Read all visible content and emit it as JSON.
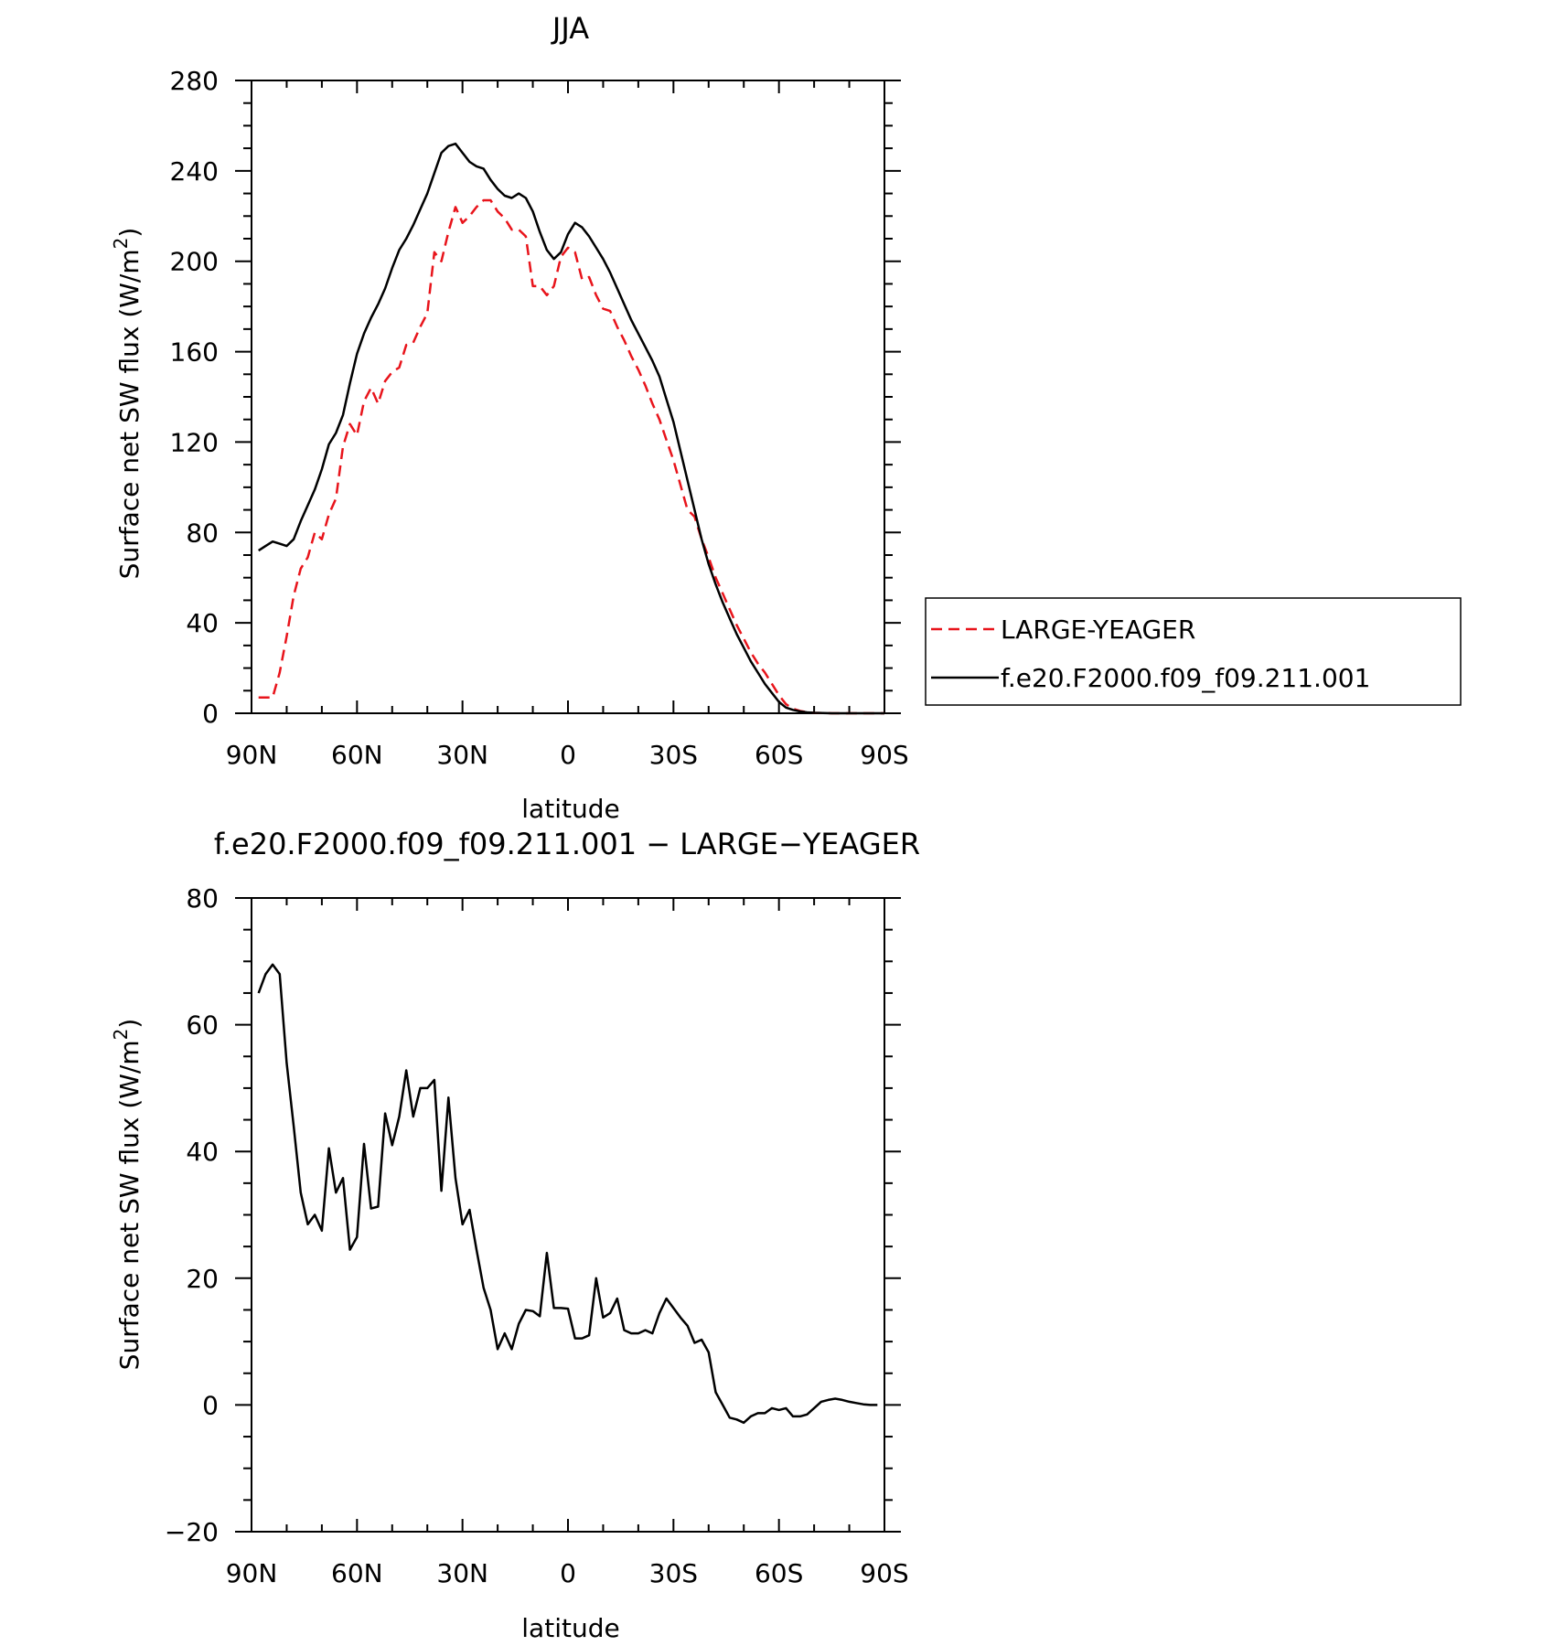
{
  "chart_data": [
    {
      "type": "line",
      "title": "JJA",
      "xlabel": "latitude",
      "ylabel": "Surface net SW flux (W/m²)",
      "ylabel_parts": {
        "main": "Surface net SW flux (W/m",
        "sup": "2",
        "end": ")"
      },
      "xlim": [
        90,
        -90
      ],
      "ylim": [
        0,
        280
      ],
      "x_ticks": [
        {
          "value": 90,
          "label": "90N"
        },
        {
          "value": 60,
          "label": "60N"
        },
        {
          "value": 30,
          "label": "30N"
        },
        {
          "value": 0,
          "label": "0"
        },
        {
          "value": -30,
          "label": "30S"
        },
        {
          "value": -60,
          "label": "60S"
        },
        {
          "value": -90,
          "label": "90S"
        }
      ],
      "y_ticks": [
        0,
        40,
        80,
        120,
        160,
        200,
        240,
        280
      ],
      "grid": false,
      "legend_position": "right",
      "series": [
        {
          "name": "LARGE-YEAGER",
          "color": "#e8141b",
          "dash": "dashed",
          "points": [
            [
              88,
              7
            ],
            [
              86,
              7
            ],
            [
              84,
              7
            ],
            [
              82,
              18
            ],
            [
              80,
              34
            ],
            [
              78,
              52
            ],
            [
              76,
              64
            ],
            [
              74,
              69
            ],
            [
              72,
              80
            ],
            [
              70,
              77
            ],
            [
              68,
              88
            ],
            [
              66,
              95
            ],
            [
              64,
              118
            ],
            [
              62,
              128
            ],
            [
              60,
              123
            ],
            [
              58,
              138
            ],
            [
              56,
              144
            ],
            [
              54,
              137
            ],
            [
              52,
              147
            ],
            [
              50,
              151
            ],
            [
              48,
              153
            ],
            [
              46,
              163
            ],
            [
              44,
              164
            ],
            [
              42,
              171
            ],
            [
              40,
              177
            ],
            [
              38,
              204
            ],
            [
              36,
              200
            ],
            [
              34,
              213
            ],
            [
              32,
              224
            ],
            [
              30,
              217
            ],
            [
              28,
              220
            ],
            [
              26,
              224
            ],
            [
              24,
              227
            ],
            [
              22,
              227
            ],
            [
              20,
              222
            ],
            [
              18,
              219
            ],
            [
              16,
              214
            ],
            [
              14,
              214
            ],
            [
              12,
              211
            ],
            [
              10,
              189
            ],
            [
              8,
              189
            ],
            [
              6,
              185
            ],
            [
              4,
              189
            ],
            [
              2,
              202
            ],
            [
              0,
              206
            ],
            [
              -2,
              204
            ],
            [
              -4,
              192
            ],
            [
              -6,
              193
            ],
            [
              -8,
              185
            ],
            [
              -10,
              179
            ],
            [
              -12,
              178
            ],
            [
              -14,
              171
            ],
            [
              -16,
              165
            ],
            [
              -18,
              158
            ],
            [
              -20,
              152
            ],
            [
              -22,
              145
            ],
            [
              -24,
              137
            ],
            [
              -26,
              130
            ],
            [
              -28,
              121
            ],
            [
              -30,
              112
            ],
            [
              -32,
              101
            ],
            [
              -34,
              90
            ],
            [
              -36,
              87
            ],
            [
              -38,
              77
            ],
            [
              -40,
              69
            ],
            [
              -42,
              60
            ],
            [
              -44,
              53
            ],
            [
              -46,
              46
            ],
            [
              -48,
              39
            ],
            [
              -50,
              33
            ],
            [
              -52,
              27
            ],
            [
              -54,
              22
            ],
            [
              -56,
              18
            ],
            [
              -58,
              13
            ],
            [
              -60,
              8
            ],
            [
              -62,
              4
            ],
            [
              -64,
              2
            ],
            [
              -66,
              1
            ],
            [
              -68,
              0.5
            ],
            [
              -70,
              0.2
            ],
            [
              -75,
              0
            ],
            [
              -80,
              0
            ],
            [
              -85,
              0
            ],
            [
              -90,
              0
            ]
          ]
        },
        {
          "name": "f.e20.F2000.f09_f09.211.001",
          "color": "#000000",
          "dash": "solid",
          "points": [
            [
              88,
              72
            ],
            [
              86,
              74
            ],
            [
              84,
              76
            ],
            [
              82,
              75
            ],
            [
              80,
              74
            ],
            [
              78,
              77
            ],
            [
              76,
              85
            ],
            [
              74,
              92
            ],
            [
              72,
              99
            ],
            [
              70,
              108
            ],
            [
              68,
              119
            ],
            [
              66,
              124
            ],
            [
              64,
              132
            ],
            [
              62,
              146
            ],
            [
              60,
              159
            ],
            [
              58,
              168
            ],
            [
              56,
              175
            ],
            [
              54,
              181
            ],
            [
              52,
              188
            ],
            [
              50,
              197
            ],
            [
              48,
              205
            ],
            [
              46,
              210
            ],
            [
              44,
              216
            ],
            [
              42,
              223
            ],
            [
              40,
              230
            ],
            [
              38,
              239
            ],
            [
              36,
              248
            ],
            [
              34,
              251
            ],
            [
              32,
              252
            ],
            [
              30,
              248
            ],
            [
              28,
              244
            ],
            [
              26,
              242
            ],
            [
              24,
              241
            ],
            [
              22,
              236
            ],
            [
              20,
              232
            ],
            [
              18,
              229
            ],
            [
              16,
              228
            ],
            [
              14,
              230
            ],
            [
              12,
              228
            ],
            [
              10,
              222
            ],
            [
              8,
              213
            ],
            [
              6,
              205
            ],
            [
              4,
              201
            ],
            [
              2,
              204
            ],
            [
              0,
              212
            ],
            [
              -2,
              217
            ],
            [
              -4,
              215
            ],
            [
              -6,
              211
            ],
            [
              -8,
              206
            ],
            [
              -10,
              201
            ],
            [
              -12,
              195
            ],
            [
              -14,
              188
            ],
            [
              -16,
              181
            ],
            [
              -18,
              174
            ],
            [
              -20,
              168
            ],
            [
              -22,
              162
            ],
            [
              -24,
              156
            ],
            [
              -26,
              149
            ],
            [
              -28,
              139
            ],
            [
              -30,
              129
            ],
            [
              -32,
              116
            ],
            [
              -34,
              103
            ],
            [
              -36,
              90
            ],
            [
              -38,
              77
            ],
            [
              -40,
              66
            ],
            [
              -42,
              57
            ],
            [
              -44,
              49
            ],
            [
              -46,
              42
            ],
            [
              -48,
              35
            ],
            [
              -50,
              29
            ],
            [
              -52,
              23
            ],
            [
              -54,
              18
            ],
            [
              -56,
              13
            ],
            [
              -58,
              9
            ],
            [
              -60,
              5
            ],
            [
              -62,
              2.5
            ],
            [
              -64,
              1.5
            ],
            [
              -66,
              0.8
            ],
            [
              -68,
              0.4
            ],
            [
              -70,
              0.2
            ],
            [
              -75,
              0
            ],
            [
              -80,
              0
            ],
            [
              -85,
              0
            ],
            [
              -90,
              0
            ]
          ]
        }
      ]
    },
    {
      "type": "line",
      "title": "f.e20.F2000.f09_f09.211.001 − LARGE−YEAGER",
      "xlabel": "latitude",
      "ylabel": "Surface net SW flux (W/m²)",
      "ylabel_parts": {
        "main": "Surface net SW flux (W/m",
        "sup": "2",
        "end": ")"
      },
      "xlim": [
        90,
        -90
      ],
      "ylim": [
        -20,
        80
      ],
      "x_ticks": [
        {
          "value": 90,
          "label": "90N"
        },
        {
          "value": 60,
          "label": "60N"
        },
        {
          "value": 30,
          "label": "30N"
        },
        {
          "value": 0,
          "label": "0"
        },
        {
          "value": -30,
          "label": "30S"
        },
        {
          "value": -60,
          "label": "60S"
        },
        {
          "value": -90,
          "label": "90S"
        }
      ],
      "y_ticks": [
        {
          "value": -20,
          "label": "−20"
        },
        {
          "value": 0,
          "label": "0"
        },
        {
          "value": 20,
          "label": "20"
        },
        {
          "value": 40,
          "label": "40"
        },
        {
          "value": 60,
          "label": "60"
        },
        {
          "value": 80,
          "label": "80"
        }
      ],
      "grid": false,
      "series": [
        {
          "color": "#000000",
          "dash": "solid",
          "points": [
            [
              88,
              65
            ],
            [
              86,
              68
            ],
            [
              84,
              69.5
            ],
            [
              82,
              68
            ],
            [
              80,
              54
            ],
            [
              78,
              44
            ],
            [
              76,
              33.5
            ],
            [
              74,
              28.5
            ],
            [
              72,
              30
            ],
            [
              70,
              27.5
            ],
            [
              68,
              40.5
            ],
            [
              66,
              33.5
            ],
            [
              64,
              35.8
            ],
            [
              62,
              24.5
            ],
            [
              60,
              26.5
            ],
            [
              58,
              41.2
            ],
            [
              56,
              31
            ],
            [
              54,
              31.3
            ],
            [
              52,
              46
            ],
            [
              50,
              41
            ],
            [
              48,
              45.5
            ],
            [
              46,
              52.8
            ],
            [
              44,
              45.5
            ],
            [
              42,
              50
            ],
            [
              40,
              50
            ],
            [
              38,
              51.3
            ],
            [
              36,
              33.8
            ],
            [
              34,
              48.5
            ],
            [
              32,
              35.8
            ],
            [
              30,
              28.5
            ],
            [
              28,
              30.8
            ],
            [
              26,
              24.5
            ],
            [
              24,
              18.5
            ],
            [
              22,
              15
            ],
            [
              20,
              8.8
            ],
            [
              18,
              11.3
            ],
            [
              16,
              8.8
            ],
            [
              14,
              12.8
            ],
            [
              12,
              15
            ],
            [
              10,
              14.8
            ],
            [
              8,
              14
            ],
            [
              6,
              24
            ],
            [
              4,
              15.3
            ],
            [
              2,
              15.3
            ],
            [
              0,
              15.2
            ],
            [
              -2,
              10.5
            ],
            [
              -4,
              10.5
            ],
            [
              -6,
              11
            ],
            [
              -8,
              20
            ],
            [
              -10,
              13.8
            ],
            [
              -12,
              14.5
            ],
            [
              -14,
              16.8
            ],
            [
              -16,
              11.8
            ],
            [
              -18,
              11.3
            ],
            [
              -20,
              11.3
            ],
            [
              -22,
              11.8
            ],
            [
              -24,
              11.3
            ],
            [
              -26,
              14.5
            ],
            [
              -28,
              16.8
            ],
            [
              -30,
              15.3
            ],
            [
              -32,
              13.8
            ],
            [
              -34,
              12.5
            ],
            [
              -36,
              9.8
            ],
            [
              -38,
              10.3
            ],
            [
              -40,
              8.3
            ],
            [
              -42,
              2
            ],
            [
              -44,
              0
            ],
            [
              -46,
              -2
            ],
            [
              -48,
              -2.3
            ],
            [
              -50,
              -2.8
            ],
            [
              -52,
              -1.8
            ],
            [
              -54,
              -1.3
            ],
            [
              -56,
              -1.3
            ],
            [
              -58,
              -0.5
            ],
            [
              -60,
              -0.8
            ],
            [
              -62,
              -0.5
            ],
            [
              -64,
              -1.8
            ],
            [
              -66,
              -1.8
            ],
            [
              -68,
              -1.5
            ],
            [
              -70,
              -0.5
            ],
            [
              -72,
              0.5
            ],
            [
              -74,
              0.8
            ],
            [
              -76,
              1
            ],
            [
              -78,
              0.8
            ],
            [
              -80,
              0.5
            ],
            [
              -82,
              0.3
            ],
            [
              -84,
              0.1
            ],
            [
              -86,
              0
            ],
            [
              -88,
              0
            ]
          ]
        }
      ]
    }
  ]
}
